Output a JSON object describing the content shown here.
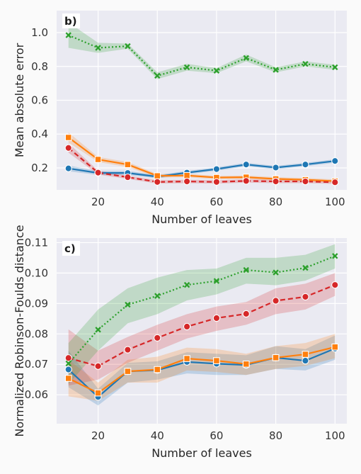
{
  "colors": {
    "figure_bg": "#fafafa",
    "axes_bg": "#eaeaf2",
    "grid": "#ffffff",
    "blue": "#1f77b4",
    "orange": "#ff7f0e",
    "red": "#d62728",
    "green": "#2ca02c"
  },
  "chart_data": [
    {
      "type": "line",
      "panel_label": "b)",
      "xlabel": "Number of leaves",
      "ylabel": "Mean absolute error",
      "x": [
        10,
        20,
        30,
        40,
        50,
        60,
        70,
        80,
        90,
        100
      ],
      "xlim": [
        6,
        104
      ],
      "ylim": [
        0.07,
        1.13
      ],
      "xticks": [
        20,
        40,
        60,
        80,
        100
      ],
      "xtick_labels": [
        "20",
        "40",
        "60",
        "80",
        "100"
      ],
      "yticks": [
        0.2,
        0.4,
        0.6,
        0.8,
        1.0
      ],
      "ytick_labels": [
        "0.2",
        "0.4",
        "0.6",
        "0.8",
        "1.0"
      ],
      "grid": true,
      "series": [
        {
          "color_key": "blue",
          "marker": "circle",
          "linestyle": "solid",
          "values": [
            0.197,
            0.17,
            0.17,
            0.148,
            0.172,
            0.193,
            0.22,
            0.202,
            0.22,
            0.241
          ],
          "lower": [
            0.18,
            0.158,
            0.158,
            0.138,
            0.162,
            0.183,
            0.21,
            0.192,
            0.21,
            0.231
          ],
          "upper": [
            0.214,
            0.182,
            0.182,
            0.158,
            0.182,
            0.203,
            0.23,
            0.212,
            0.23,
            0.251
          ]
        },
        {
          "color_key": "orange",
          "marker": "square",
          "linestyle": "solid",
          "values": [
            0.38,
            0.25,
            0.22,
            0.153,
            0.155,
            0.143,
            0.145,
            0.135,
            0.13,
            0.122
          ],
          "lower": [
            0.35,
            0.235,
            0.205,
            0.143,
            0.145,
            0.133,
            0.135,
            0.125,
            0.12,
            0.112
          ],
          "upper": [
            0.41,
            0.265,
            0.235,
            0.163,
            0.165,
            0.153,
            0.155,
            0.145,
            0.14,
            0.132
          ]
        },
        {
          "color_key": "red",
          "marker": "circle",
          "linestyle": "dashed",
          "values": [
            0.318,
            0.172,
            0.145,
            0.117,
            0.12,
            0.117,
            0.123,
            0.12,
            0.12,
            0.115
          ],
          "lower": [
            0.29,
            0.16,
            0.135,
            0.107,
            0.11,
            0.107,
            0.113,
            0.11,
            0.11,
            0.105
          ],
          "upper": [
            0.346,
            0.184,
            0.155,
            0.127,
            0.13,
            0.127,
            0.133,
            0.13,
            0.13,
            0.125
          ]
        },
        {
          "color_key": "green",
          "marker": "x",
          "linestyle": "dotted",
          "values": [
            0.985,
            0.91,
            0.92,
            0.745,
            0.795,
            0.775,
            0.85,
            0.78,
            0.815,
            0.795
          ],
          "lower": [
            0.91,
            0.88,
            0.905,
            0.725,
            0.775,
            0.76,
            0.83,
            0.765,
            0.8,
            0.78
          ],
          "upper": [
            1.06,
            0.94,
            0.935,
            0.765,
            0.815,
            0.79,
            0.87,
            0.795,
            0.83,
            0.81
          ]
        }
      ]
    },
    {
      "type": "line",
      "panel_label": "c)",
      "xlabel": "Number of leaves",
      "ylabel": "Normalized Robinson-Foulds distance",
      "x": [
        10,
        20,
        30,
        40,
        50,
        60,
        70,
        80,
        90,
        100
      ],
      "xlim": [
        6,
        104
      ],
      "ylim": [
        0.0505,
        0.1115
      ],
      "xticks": [
        20,
        40,
        60,
        80,
        100
      ],
      "xtick_labels": [
        "20",
        "40",
        "60",
        "80",
        "100"
      ],
      "yticks": [
        0.06,
        0.07,
        0.08,
        0.09,
        0.1,
        0.11
      ],
      "ytick_labels": [
        "0.06",
        "0.07",
        "0.08",
        "0.09",
        "0.10",
        "0.11"
      ],
      "grid": true,
      "series": [
        {
          "color_key": "blue",
          "marker": "circle",
          "linestyle": "solid",
          "values": [
            0.0683,
            0.0593,
            0.0677,
            0.0681,
            0.0708,
            0.0702,
            0.0698,
            0.0722,
            0.0712,
            0.0752
          ],
          "lower": [
            0.0625,
            0.0565,
            0.064,
            0.065,
            0.067,
            0.0665,
            0.0665,
            0.0685,
            0.068,
            0.0715
          ],
          "upper": [
            0.0745,
            0.062,
            0.0705,
            0.071,
            0.074,
            0.0735,
            0.073,
            0.076,
            0.075,
            0.0795
          ]
        },
        {
          "color_key": "orange",
          "marker": "square",
          "linestyle": "solid",
          "values": [
            0.0654,
            0.0606,
            0.0677,
            0.0683,
            0.0719,
            0.0712,
            0.0701,
            0.0722,
            0.0733,
            0.0757
          ],
          "lower": [
            0.0595,
            0.058,
            0.064,
            0.064,
            0.068,
            0.0675,
            0.0665,
            0.0685,
            0.0695,
            0.072
          ],
          "upper": [
            0.0715,
            0.064,
            0.0715,
            0.0725,
            0.0755,
            0.075,
            0.0735,
            0.076,
            0.077,
            0.08
          ]
        },
        {
          "color_key": "red",
          "marker": "circle",
          "linestyle": "dashed",
          "values": [
            0.0721,
            0.0694,
            0.0748,
            0.0787,
            0.0824,
            0.0852,
            0.0866,
            0.0909,
            0.0922,
            0.0961
          ],
          "lower": [
            0.063,
            0.065,
            0.0705,
            0.0745,
            0.0785,
            0.081,
            0.083,
            0.0865,
            0.088,
            0.0925
          ],
          "upper": [
            0.0815,
            0.0745,
            0.079,
            0.083,
            0.0865,
            0.089,
            0.0905,
            0.095,
            0.0965,
            0.1
          ]
        },
        {
          "color_key": "green",
          "marker": "x",
          "linestyle": "dotted",
          "values": [
            0.0703,
            0.0814,
            0.0896,
            0.0925,
            0.0961,
            0.0974,
            0.101,
            0.1002,
            0.1017,
            0.1056
          ],
          "lower": [
            0.0635,
            0.0745,
            0.0835,
            0.0865,
            0.091,
            0.093,
            0.0965,
            0.096,
            0.0975,
            0.1015
          ],
          "upper": [
            0.077,
            0.088,
            0.095,
            0.0985,
            0.101,
            0.1015,
            0.105,
            0.105,
            0.106,
            0.1095
          ]
        }
      ]
    }
  ]
}
